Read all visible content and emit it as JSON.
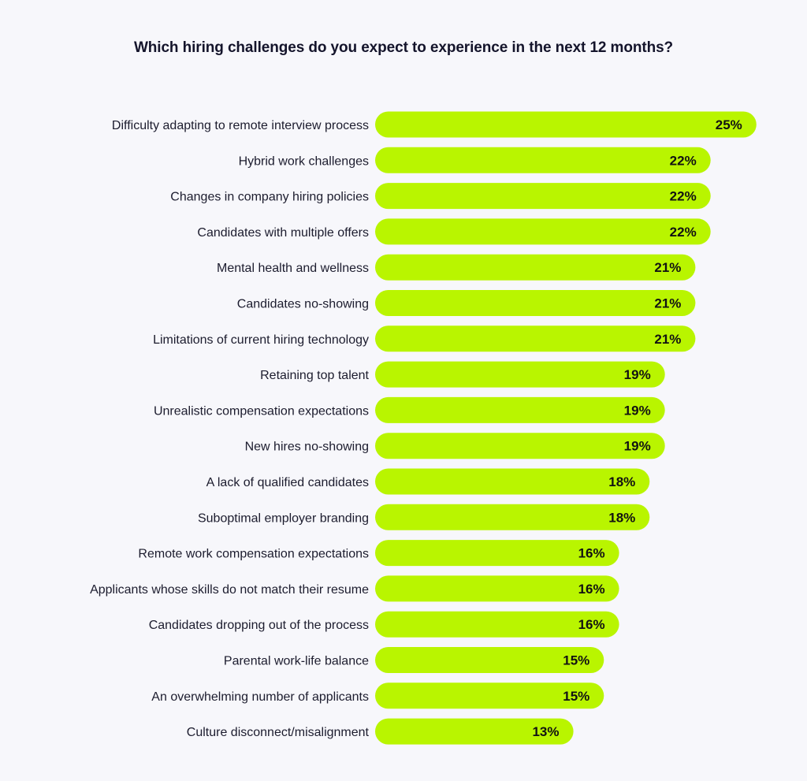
{
  "chart_data": {
    "type": "bar",
    "orientation": "horizontal",
    "title": "Which hiring challenges do you expect to experience in the next 12 months?",
    "xlabel": "",
    "ylabel": "",
    "value_suffix": "%",
    "xlim": [
      0,
      25
    ],
    "grid": false,
    "bar_color": "#b9f500",
    "categories": [
      "Difficulty adapting to remote interview process",
      "Hybrid work challenges",
      "Changes in company hiring policies",
      "Candidates with multiple offers",
      "Mental health and wellness",
      "Candidates no-showing",
      "Limitations of current hiring technology",
      "Retaining top talent",
      "Unrealistic compensation expectations",
      "New hires no-showing",
      "A lack of qualified candidates",
      "Suboptimal employer branding",
      "Remote work compensation expectations",
      "Applicants whose skills do not match their resume",
      "Candidates dropping out of the process",
      "Parental work-life balance",
      "An overwhelming number of applicants",
      "Culture disconnect/misalignment"
    ],
    "values": [
      25,
      22,
      22,
      22,
      21,
      21,
      21,
      19,
      19,
      19,
      18,
      18,
      16,
      16,
      16,
      15,
      15,
      13
    ]
  }
}
